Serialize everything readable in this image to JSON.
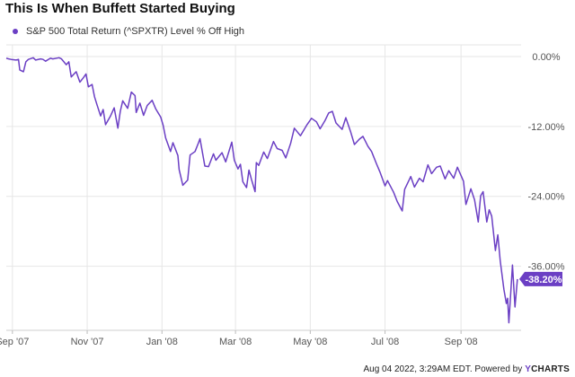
{
  "title": "This Is When Buffett Started Buying",
  "footer": {
    "text": "Aug 04 2022, 3:29AM EDT. Powered by",
    "brand_y": "Y",
    "brand_rest": "CHARTS"
  },
  "colors": {
    "series": "#6b3fc4",
    "grid": "#e6e6e6",
    "axis_text": "#555555"
  },
  "chart_data": {
    "type": "line",
    "series": [
      {
        "name": "S&P 500 Total Return (^SPXTR) Level % Off High",
        "color": "#6b3fc4",
        "last_label": "-38.20%",
        "x": [
          "2007-08-27",
          "2007-08-29",
          "2007-08-31",
          "2007-09-04",
          "2007-09-06",
          "2007-09-07",
          "2007-09-10",
          "2007-09-12",
          "2007-09-14",
          "2007-09-18",
          "2007-09-20",
          "2007-09-24",
          "2007-09-26",
          "2007-09-28",
          "2007-10-02",
          "2007-10-04",
          "2007-10-09",
          "2007-10-11",
          "2007-10-15",
          "2007-10-17",
          "2007-10-19",
          "2007-10-23",
          "2007-10-26",
          "2007-10-29",
          "2007-10-31",
          "2007-11-02",
          "2007-11-05",
          "2007-11-07",
          "2007-11-09",
          "2007-11-12",
          "2007-11-14",
          "2007-11-16",
          "2007-11-20",
          "2007-11-23",
          "2007-11-26",
          "2007-11-28",
          "2007-11-30",
          "2007-12-04",
          "2007-12-07",
          "2007-12-10",
          "2007-12-11",
          "2007-12-14",
          "2007-12-17",
          "2007-12-20",
          "2007-12-24",
          "2007-12-27",
          "2007-12-31",
          "2008-01-02",
          "2008-01-04",
          "2008-01-08",
          "2008-01-10",
          "2008-01-14",
          "2008-01-15",
          "2008-01-18",
          "2008-01-22",
          "2008-01-24",
          "2008-01-28",
          "2008-01-31",
          "2008-02-01",
          "2008-02-05",
          "2008-02-08",
          "2008-02-12",
          "2008-02-14",
          "2008-02-19",
          "2008-02-22",
          "2008-02-27",
          "2008-02-29",
          "2008-03-03",
          "2008-03-05",
          "2008-03-07",
          "2008-03-10",
          "2008-03-12",
          "2008-03-14",
          "2008-03-17",
          "2008-03-18",
          "2008-03-20",
          "2008-03-24",
          "2008-03-27",
          "2008-04-01",
          "2008-04-04",
          "2008-04-08",
          "2008-04-11",
          "2008-04-15",
          "2008-04-18",
          "2008-04-23",
          "2008-04-28",
          "2008-05-02",
          "2008-05-06",
          "2008-05-09",
          "2008-05-13",
          "2008-05-16",
          "2008-05-19",
          "2008-05-22",
          "2008-05-27",
          "2008-05-30",
          "2008-06-03",
          "2008-06-06",
          "2008-06-10",
          "2008-06-13",
          "2008-06-17",
          "2008-06-20",
          "2008-06-24",
          "2008-06-27",
          "2008-07-01",
          "2008-07-03",
          "2008-07-08",
          "2008-07-11",
          "2008-07-15",
          "2008-07-17",
          "2008-07-22",
          "2008-07-25",
          "2008-07-29",
          "2008-08-01",
          "2008-08-05",
          "2008-08-08",
          "2008-08-12",
          "2008-08-15",
          "2008-08-19",
          "2008-08-22",
          "2008-08-26",
          "2008-08-29",
          "2008-09-03",
          "2008-09-05",
          "2008-09-09",
          "2008-09-12",
          "2008-09-15",
          "2008-09-17",
          "2008-09-19",
          "2008-09-22",
          "2008-09-24",
          "2008-09-26",
          "2008-09-29",
          "2008-10-01",
          "2008-10-03",
          "2008-10-06",
          "2008-10-08",
          "2008-10-09",
          "2008-10-10",
          "2008-10-13",
          "2008-10-15",
          "2008-10-17"
        ],
        "values": [
          -0.3,
          -0.4,
          -0.5,
          -0.6,
          -0.5,
          -2.3,
          -2.6,
          -0.9,
          -0.5,
          -0.2,
          -0.6,
          -0.4,
          -0.5,
          -0.8,
          -0.3,
          -0.4,
          -0.2,
          -0.4,
          -1.4,
          -0.9,
          -3.5,
          -2.6,
          -4.4,
          -3.6,
          -3.0,
          -5.2,
          -4.8,
          -6.9,
          -8.3,
          -10.2,
          -9.1,
          -11.7,
          -10.2,
          -8.8,
          -12.3,
          -9.4,
          -7.6,
          -8.9,
          -6.1,
          -6.7,
          -9.6,
          -8.0,
          -10.1,
          -8.4,
          -7.5,
          -9.0,
          -10.4,
          -11.8,
          -14.0,
          -16.3,
          -14.8,
          -17.0,
          -19.4,
          -22.1,
          -21.2,
          -16.9,
          -16.3,
          -14.7,
          -14.1,
          -18.8,
          -18.9,
          -16.7,
          -17.8,
          -16.5,
          -18.1,
          -14.7,
          -17.8,
          -19.3,
          -18.5,
          -21.5,
          -22.5,
          -19.5,
          -21.1,
          -23.2,
          -18.2,
          -18.7,
          -16.4,
          -17.5,
          -14.6,
          -15.8,
          -16.1,
          -17.4,
          -14.9,
          -12.3,
          -13.6,
          -11.8,
          -10.6,
          -11.2,
          -12.4,
          -11.0,
          -9.7,
          -9.4,
          -11.4,
          -12.5,
          -10.5,
          -13.0,
          -15.1,
          -14.2,
          -13.7,
          -15.4,
          -16.3,
          -18.4,
          -19.9,
          -22.2,
          -21.3,
          -23.3,
          -24.9,
          -26.5,
          -22.8,
          -20.6,
          -22.4,
          -20.9,
          -21.5,
          -18.6,
          -20.1,
          -19.0,
          -18.8,
          -21.0,
          -19.6,
          -20.9,
          -19.0,
          -21.4,
          -25.4,
          -22.7,
          -24.6,
          -28.4,
          -23.9,
          -23.2,
          -28.4,
          -26.3,
          -27.4,
          -33.3,
          -30.6,
          -35.1,
          -40.0,
          -42.4,
          -41.5,
          -45.7,
          -35.8,
          -43.0,
          -38.2
        ]
      }
    ],
    "x_ticks": [
      "Sep '07",
      "Nov '07",
      "Jan '08",
      "Mar '08",
      "May '08",
      "Jul '08",
      "Sep '08"
    ],
    "x_tick_dates": [
      "2007-09-01",
      "2007-11-01",
      "2008-01-01",
      "2008-03-01",
      "2008-05-01",
      "2008-07-01",
      "2008-09-01"
    ],
    "y_ticks": [
      0,
      -12,
      -24,
      -36
    ],
    "y_tick_labels": [
      "0.00%",
      "-12.00%",
      "-24.00%",
      "-36.00%"
    ],
    "ylim": [
      -47,
      2
    ],
    "x_range": [
      "2007-08-27",
      "2008-10-20"
    ],
    "grid": true,
    "y_axis_side": "right"
  }
}
